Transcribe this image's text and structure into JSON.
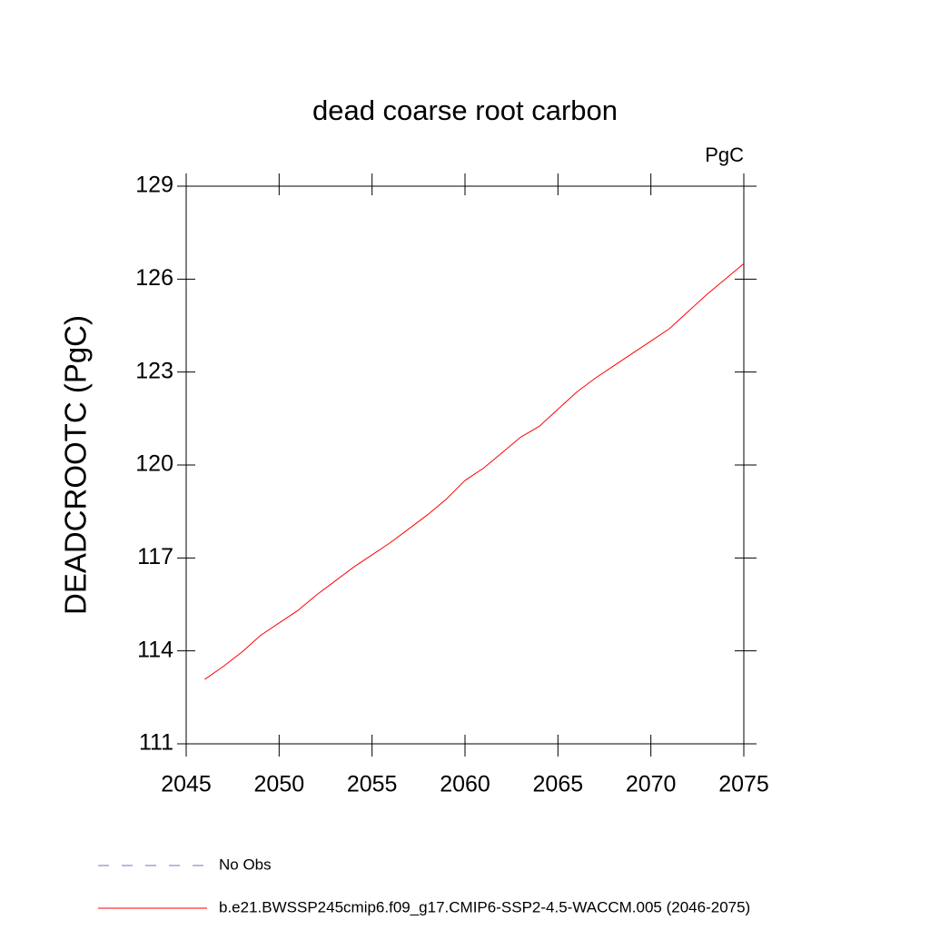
{
  "chart_data": {
    "type": "line",
    "title": "dead coarse root carbon",
    "units_label": "PgC",
    "y_label": "DEADCROOTC  (PgC)",
    "x": [
      2046,
      2047,
      2048,
      2049,
      2050,
      2051,
      2052,
      2053,
      2054,
      2055,
      2056,
      2057,
      2058,
      2059,
      2060,
      2061,
      2062,
      2063,
      2064,
      2065,
      2066,
      2067,
      2068,
      2069,
      2070,
      2071,
      2072,
      2073,
      2074,
      2075
    ],
    "series": [
      {
        "name": "No Obs",
        "color": "#7b6fc0",
        "dashed": true,
        "values": [
          null,
          null,
          null,
          null,
          null,
          null,
          null,
          null,
          null,
          null,
          null,
          null,
          null,
          null,
          null,
          null,
          null,
          null,
          null,
          null,
          null,
          null,
          null,
          null,
          null,
          null,
          null,
          null,
          null,
          null
        ]
      },
      {
        "name": "b.e21.BWSSP245cmip6.f09_g17.CMIP6-SSP2-4.5-WACCM.005 (2046-2075)",
        "color": "#ff0000",
        "dashed": false,
        "values": [
          113.08,
          113.5,
          113.96,
          114.5,
          114.9,
          115.3,
          115.8,
          116.25,
          116.7,
          117.1,
          117.5,
          117.95,
          118.4,
          118.9,
          119.5,
          119.9,
          120.4,
          120.9,
          121.25,
          121.8,
          122.35,
          122.8,
          123.2,
          123.6,
          124.0,
          124.4,
          124.95,
          125.5,
          126.0,
          126.5
        ]
      }
    ],
    "xlim": [
      2045,
      2075
    ],
    "xticks": [
      2045,
      2050,
      2055,
      2060,
      2065,
      2070,
      2075
    ],
    "ylim": [
      111,
      129
    ],
    "yticks": [
      111,
      114,
      117,
      120,
      123,
      126,
      129
    ],
    "grid": false
  }
}
